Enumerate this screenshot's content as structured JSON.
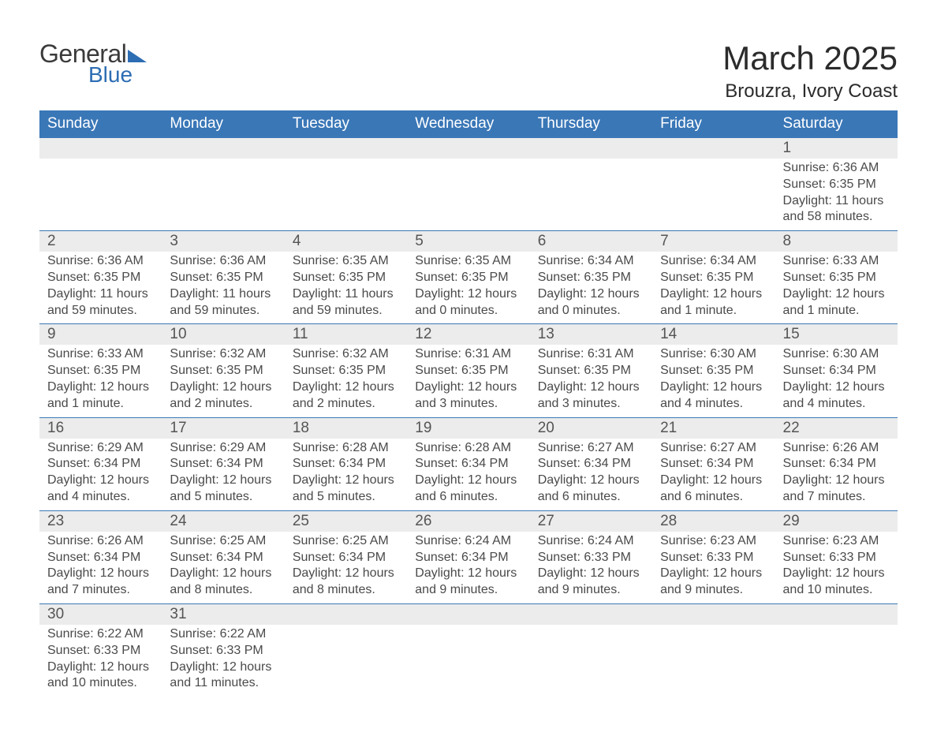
{
  "brand": {
    "word1": "General",
    "word2": "Blue",
    "icon_color": "#2d6db3"
  },
  "title": "March 2025",
  "location": "Brouzra, Ivory Coast",
  "styling": {
    "header_bg": "#3a77b7",
    "header_text": "#ffffff",
    "daynum_bg": "#ececec",
    "body_text": "#4a4a4a",
    "row_border": "#3a77b7",
    "title_fontsize": 42,
    "location_fontsize": 24,
    "th_fontsize": 19,
    "daynum_fontsize": 19,
    "cell_fontsize": 16
  },
  "day_headers": [
    "Sunday",
    "Monday",
    "Tuesday",
    "Wednesday",
    "Thursday",
    "Friday",
    "Saturday"
  ],
  "weeks": [
    [
      null,
      null,
      null,
      null,
      null,
      null,
      {
        "n": "1",
        "sunrise": "Sunrise: 6:36 AM",
        "sunset": "Sunset: 6:35 PM",
        "daylight": "Daylight: 11 hours and 58 minutes."
      }
    ],
    [
      {
        "n": "2",
        "sunrise": "Sunrise: 6:36 AM",
        "sunset": "Sunset: 6:35 PM",
        "daylight": "Daylight: 11 hours and 59 minutes."
      },
      {
        "n": "3",
        "sunrise": "Sunrise: 6:36 AM",
        "sunset": "Sunset: 6:35 PM",
        "daylight": "Daylight: 11 hours and 59 minutes."
      },
      {
        "n": "4",
        "sunrise": "Sunrise: 6:35 AM",
        "sunset": "Sunset: 6:35 PM",
        "daylight": "Daylight: 11 hours and 59 minutes."
      },
      {
        "n": "5",
        "sunrise": "Sunrise: 6:35 AM",
        "sunset": "Sunset: 6:35 PM",
        "daylight": "Daylight: 12 hours and 0 minutes."
      },
      {
        "n": "6",
        "sunrise": "Sunrise: 6:34 AM",
        "sunset": "Sunset: 6:35 PM",
        "daylight": "Daylight: 12 hours and 0 minutes."
      },
      {
        "n": "7",
        "sunrise": "Sunrise: 6:34 AM",
        "sunset": "Sunset: 6:35 PM",
        "daylight": "Daylight: 12 hours and 1 minute."
      },
      {
        "n": "8",
        "sunrise": "Sunrise: 6:33 AM",
        "sunset": "Sunset: 6:35 PM",
        "daylight": "Daylight: 12 hours and 1 minute."
      }
    ],
    [
      {
        "n": "9",
        "sunrise": "Sunrise: 6:33 AM",
        "sunset": "Sunset: 6:35 PM",
        "daylight": "Daylight: 12 hours and 1 minute."
      },
      {
        "n": "10",
        "sunrise": "Sunrise: 6:32 AM",
        "sunset": "Sunset: 6:35 PM",
        "daylight": "Daylight: 12 hours and 2 minutes."
      },
      {
        "n": "11",
        "sunrise": "Sunrise: 6:32 AM",
        "sunset": "Sunset: 6:35 PM",
        "daylight": "Daylight: 12 hours and 2 minutes."
      },
      {
        "n": "12",
        "sunrise": "Sunrise: 6:31 AM",
        "sunset": "Sunset: 6:35 PM",
        "daylight": "Daylight: 12 hours and 3 minutes."
      },
      {
        "n": "13",
        "sunrise": "Sunrise: 6:31 AM",
        "sunset": "Sunset: 6:35 PM",
        "daylight": "Daylight: 12 hours and 3 minutes."
      },
      {
        "n": "14",
        "sunrise": "Sunrise: 6:30 AM",
        "sunset": "Sunset: 6:35 PM",
        "daylight": "Daylight: 12 hours and 4 minutes."
      },
      {
        "n": "15",
        "sunrise": "Sunrise: 6:30 AM",
        "sunset": "Sunset: 6:34 PM",
        "daylight": "Daylight: 12 hours and 4 minutes."
      }
    ],
    [
      {
        "n": "16",
        "sunrise": "Sunrise: 6:29 AM",
        "sunset": "Sunset: 6:34 PM",
        "daylight": "Daylight: 12 hours and 4 minutes."
      },
      {
        "n": "17",
        "sunrise": "Sunrise: 6:29 AM",
        "sunset": "Sunset: 6:34 PM",
        "daylight": "Daylight: 12 hours and 5 minutes."
      },
      {
        "n": "18",
        "sunrise": "Sunrise: 6:28 AM",
        "sunset": "Sunset: 6:34 PM",
        "daylight": "Daylight: 12 hours and 5 minutes."
      },
      {
        "n": "19",
        "sunrise": "Sunrise: 6:28 AM",
        "sunset": "Sunset: 6:34 PM",
        "daylight": "Daylight: 12 hours and 6 minutes."
      },
      {
        "n": "20",
        "sunrise": "Sunrise: 6:27 AM",
        "sunset": "Sunset: 6:34 PM",
        "daylight": "Daylight: 12 hours and 6 minutes."
      },
      {
        "n": "21",
        "sunrise": "Sunrise: 6:27 AM",
        "sunset": "Sunset: 6:34 PM",
        "daylight": "Daylight: 12 hours and 6 minutes."
      },
      {
        "n": "22",
        "sunrise": "Sunrise: 6:26 AM",
        "sunset": "Sunset: 6:34 PM",
        "daylight": "Daylight: 12 hours and 7 minutes."
      }
    ],
    [
      {
        "n": "23",
        "sunrise": "Sunrise: 6:26 AM",
        "sunset": "Sunset: 6:34 PM",
        "daylight": "Daylight: 12 hours and 7 minutes."
      },
      {
        "n": "24",
        "sunrise": "Sunrise: 6:25 AM",
        "sunset": "Sunset: 6:34 PM",
        "daylight": "Daylight: 12 hours and 8 minutes."
      },
      {
        "n": "25",
        "sunrise": "Sunrise: 6:25 AM",
        "sunset": "Sunset: 6:34 PM",
        "daylight": "Daylight: 12 hours and 8 minutes."
      },
      {
        "n": "26",
        "sunrise": "Sunrise: 6:24 AM",
        "sunset": "Sunset: 6:34 PM",
        "daylight": "Daylight: 12 hours and 9 minutes."
      },
      {
        "n": "27",
        "sunrise": "Sunrise: 6:24 AM",
        "sunset": "Sunset: 6:33 PM",
        "daylight": "Daylight: 12 hours and 9 minutes."
      },
      {
        "n": "28",
        "sunrise": "Sunrise: 6:23 AM",
        "sunset": "Sunset: 6:33 PM",
        "daylight": "Daylight: 12 hours and 9 minutes."
      },
      {
        "n": "29",
        "sunrise": "Sunrise: 6:23 AM",
        "sunset": "Sunset: 6:33 PM",
        "daylight": "Daylight: 12 hours and 10 minutes."
      }
    ],
    [
      {
        "n": "30",
        "sunrise": "Sunrise: 6:22 AM",
        "sunset": "Sunset: 6:33 PM",
        "daylight": "Daylight: 12 hours and 10 minutes."
      },
      {
        "n": "31",
        "sunrise": "Sunrise: 6:22 AM",
        "sunset": "Sunset: 6:33 PM",
        "daylight": "Daylight: 12 hours and 11 minutes."
      },
      null,
      null,
      null,
      null,
      null
    ]
  ]
}
